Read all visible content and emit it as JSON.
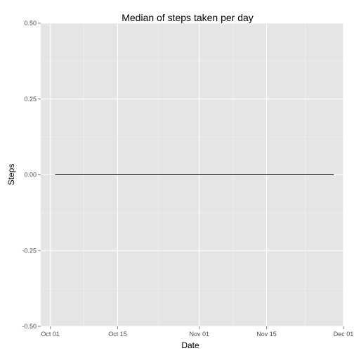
{
  "chart_data": {
    "type": "line",
    "title": "Median of steps taken per day",
    "xlabel": "Date",
    "ylabel": "Steps",
    "x_tick_labels": [
      "Oct 01",
      "Oct 15",
      "Nov 01",
      "Nov 15",
      "Dec 01"
    ],
    "x_tick_dates": [
      "2012-10-01",
      "2012-10-15",
      "2012-11-01",
      "2012-11-15",
      "2012-12-01"
    ],
    "xlim": [
      "2012-09-29",
      "2012-12-01"
    ],
    "y_tick_labels": [
      "0.50",
      "0.25",
      "0.00",
      "-0.25",
      "-0.50"
    ],
    "y_tick_values": [
      0.5,
      0.25,
      0,
      -0.25,
      -0.5
    ],
    "ylim": [
      -0.5,
      0.5
    ],
    "series": [
      {
        "x": [
          "2012-10-02",
          "2012-11-29"
        ],
        "y": [
          0,
          0
        ],
        "color": "#000000"
      }
    ],
    "grid": true,
    "background_color": "#e5e5e5"
  }
}
